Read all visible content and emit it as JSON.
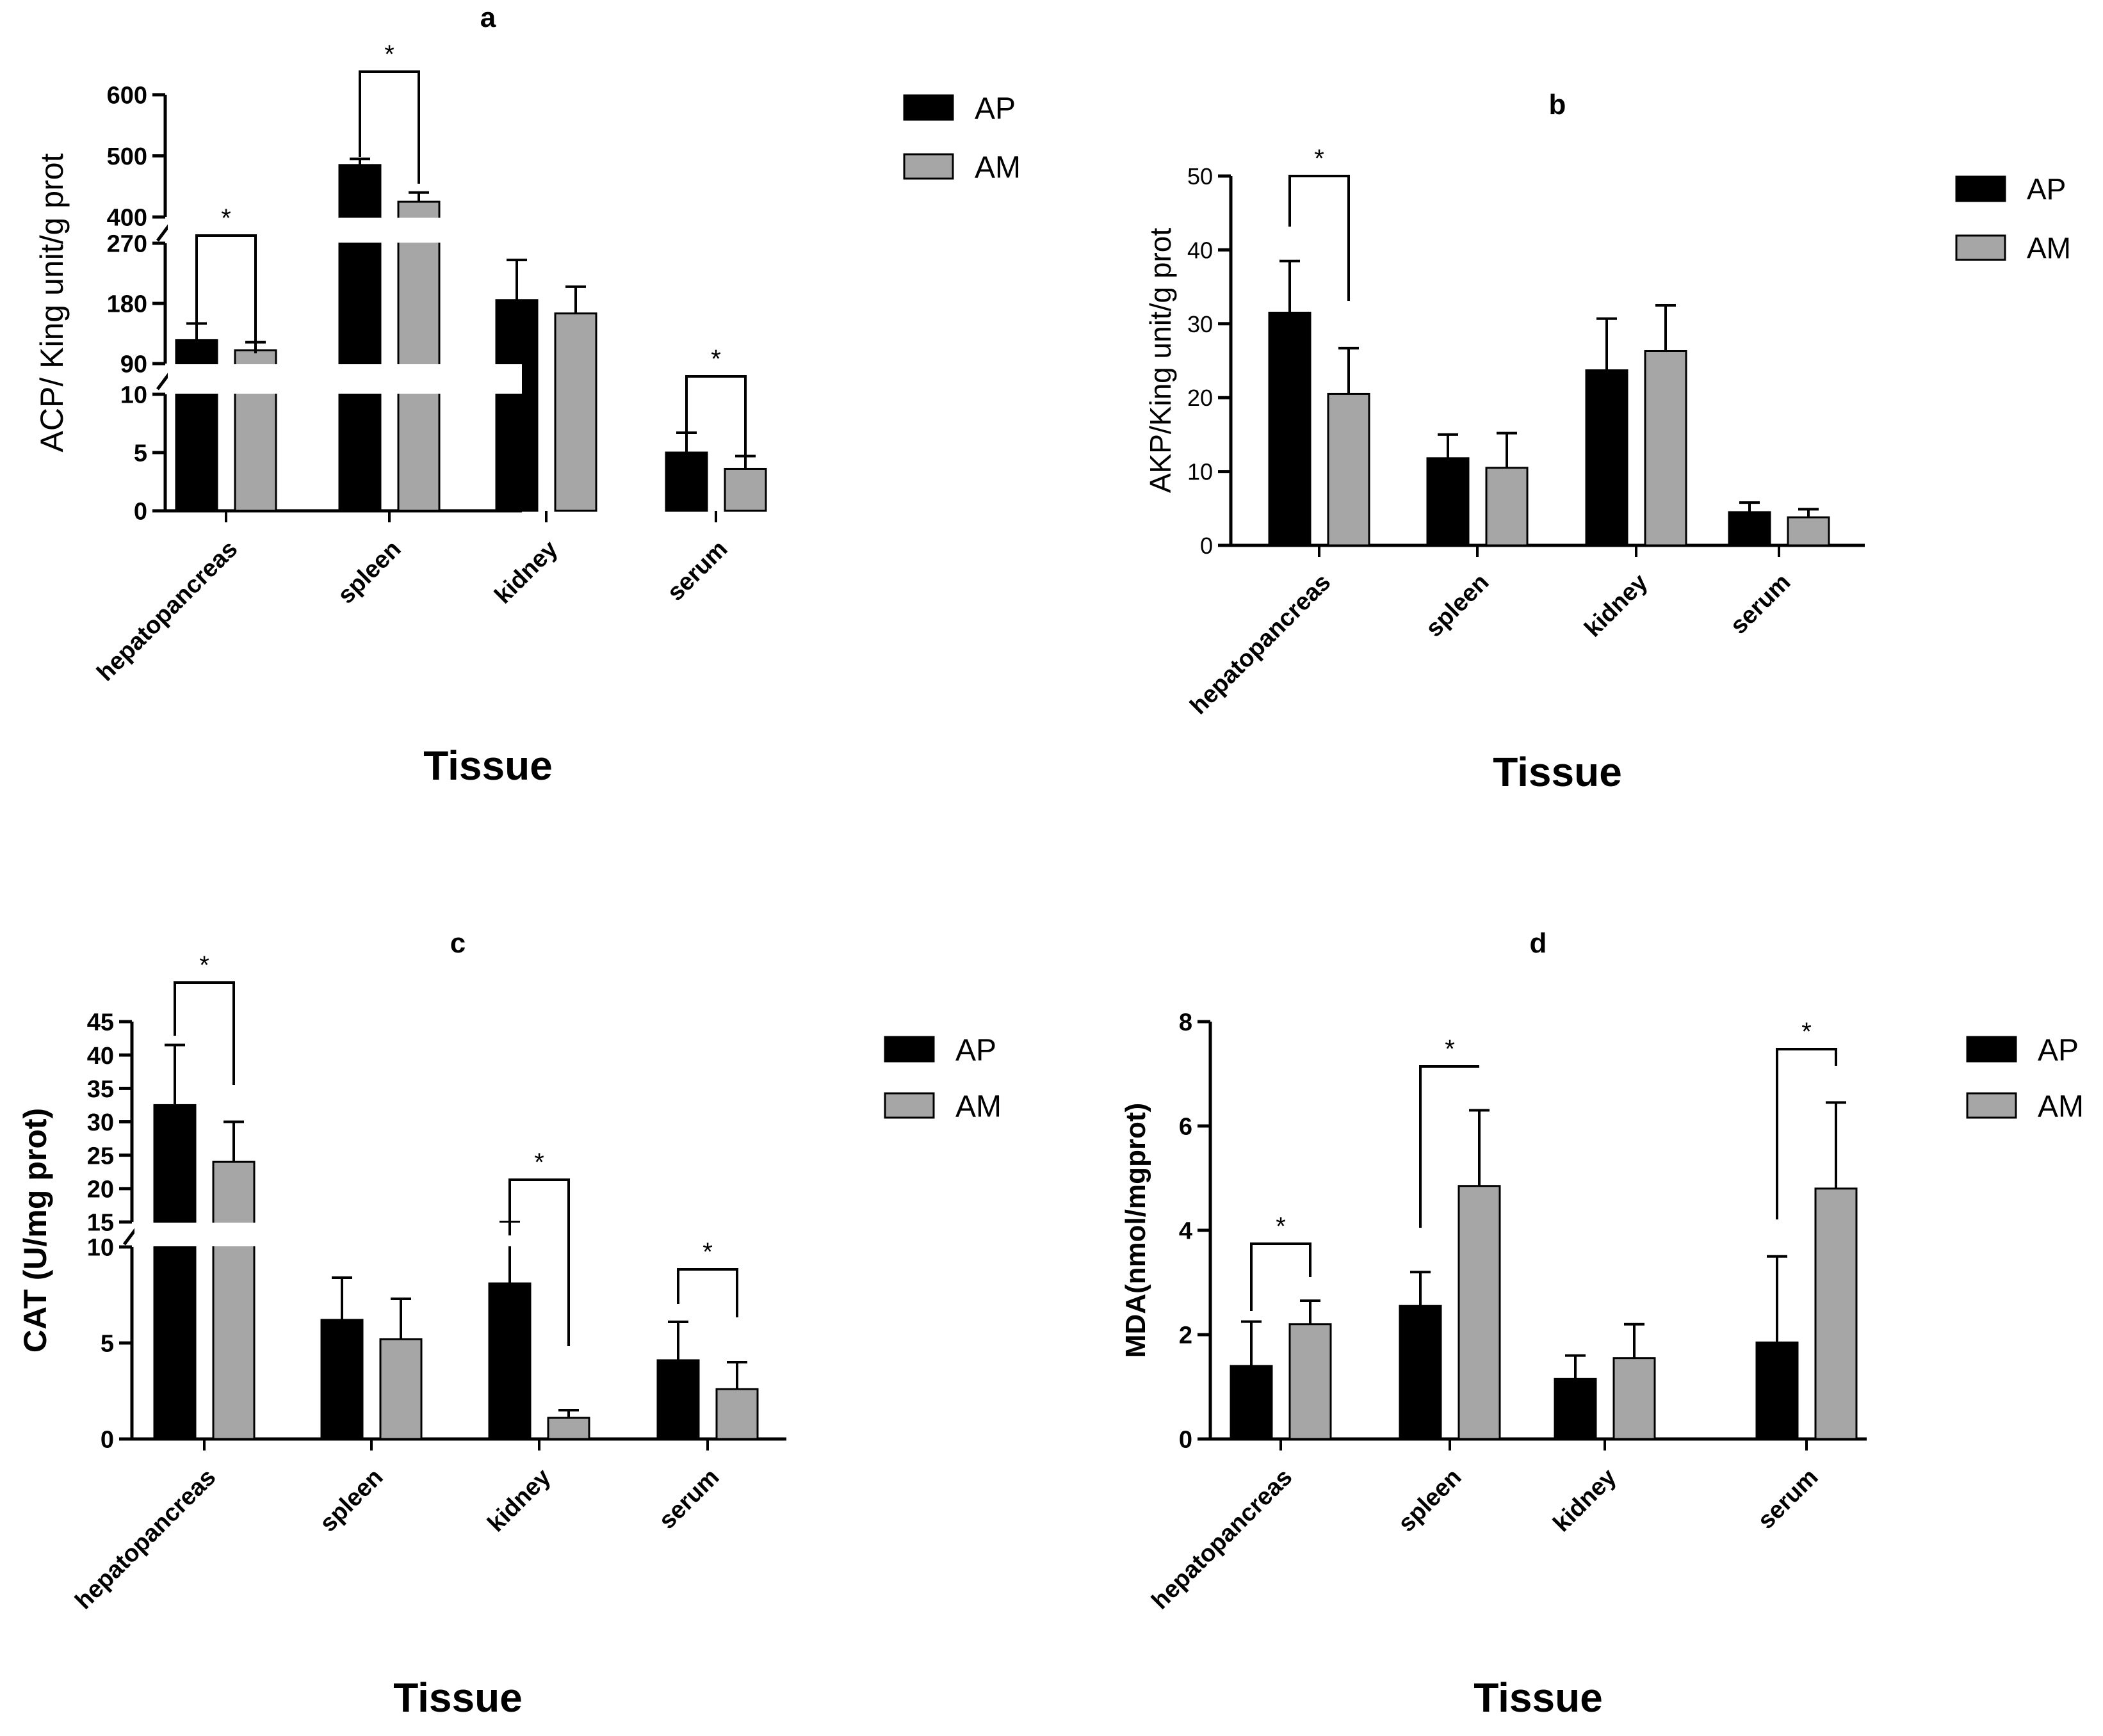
{
  "colors": {
    "AP": "#000000",
    "AM": "#a6a6a6",
    "axis": "#000000",
    "background": "#ffffff"
  },
  "chart_data": [
    {
      "id": "a",
      "panel_label": "a",
      "type": "bar",
      "categories": [
        "hepatopancreas",
        "spleen",
        "kidney",
        "serum"
      ],
      "series": [
        {
          "name": "AP",
          "values": [
            125,
            485,
            185,
            5.0
          ],
          "errors": [
            25,
            10,
            60,
            1.7
          ]
        },
        {
          "name": "AM",
          "values": [
            110,
            425,
            165,
            3.6
          ],
          "errors": [
            12,
            15,
            40,
            1.1
          ]
        }
      ],
      "xlabel": "Tissue",
      "ylabel": "ACP/ King unit/g prot",
      "axis_breaks": {
        "segments": [
          {
            "range": [
              0,
              10
            ],
            "ticks": [
              0,
              5,
              10
            ]
          },
          {
            "range": [
              90,
              270
            ],
            "ticks": [
              90,
              180,
              270
            ]
          },
          {
            "range": [
              400,
              600
            ],
            "ticks": [
              400,
              500,
              600
            ]
          }
        ]
      },
      "significance": [
        {
          "category": "hepatopancreas",
          "label": "*"
        },
        {
          "category": "spleen",
          "label": "*"
        },
        {
          "category": "serum",
          "label": "*"
        }
      ],
      "legend": [
        "AP",
        "AM"
      ]
    },
    {
      "id": "b",
      "panel_label": "b",
      "type": "bar",
      "categories": [
        "hepatopancreas",
        "spleen",
        "kidney",
        "serum"
      ],
      "series": [
        {
          "name": "AP",
          "values": [
            31.5,
            11.8,
            23.7,
            4.5
          ],
          "errors": [
            7,
            3.2,
            7,
            1.3
          ]
        },
        {
          "name": "AM",
          "values": [
            20.5,
            10.5,
            26.3,
            3.8
          ],
          "errors": [
            6.2,
            4.7,
            6.2,
            1.1
          ]
        }
      ],
      "xlabel": "Tissue",
      "ylabel": "AKP/King unit/g prot",
      "ylim": [
        0,
        50
      ],
      "yticks": [
        0,
        10,
        20,
        30,
        40,
        50
      ],
      "significance": [
        {
          "category": "hepatopancreas",
          "label": "*"
        }
      ],
      "legend": [
        "AP",
        "AM"
      ]
    },
    {
      "id": "c",
      "panel_label": "c",
      "type": "bar",
      "categories": [
        "hepatopancreas",
        "spleen",
        "kidney",
        "serum"
      ],
      "series": [
        {
          "name": "AP",
          "values": [
            32.5,
            6.2,
            8.1,
            4.1
          ],
          "errors": [
            9,
            2.2,
            2,
            2
          ]
        },
        {
          "name": "AM",
          "values": [
            24,
            5.2,
            1.1,
            2.6
          ],
          "errors": [
            6,
            2.1,
            0.4,
            1.4
          ]
        }
      ],
      "xlabel": "Tissue",
      "ylabel": "CAT  (U/mg prot)",
      "axis_breaks": {
        "segments": [
          {
            "range": [
              0,
              10
            ],
            "ticks": [
              0,
              5,
              10
            ]
          },
          {
            "range": [
              15,
              45
            ],
            "ticks": [
              15,
              20,
              25,
              30,
              35,
              40,
              45
            ]
          }
        ]
      },
      "significance": [
        {
          "category": "hepatopancreas",
          "label": "*"
        },
        {
          "category": "kidney",
          "label": "*"
        },
        {
          "category": "serum",
          "label": "*"
        }
      ],
      "legend": [
        "AP",
        "AM"
      ]
    },
    {
      "id": "d",
      "panel_label": "d",
      "type": "bar",
      "categories": [
        "hepatopancreas",
        "spleen",
        "kidney",
        "serum"
      ],
      "series": [
        {
          "name": "AP",
          "values": [
            1.4,
            2.55,
            1.15,
            1.85
          ],
          "errors": [
            0.85,
            0.65,
            0.45,
            1.65
          ]
        },
        {
          "name": "AM",
          "values": [
            2.2,
            4.85,
            1.55,
            4.8
          ],
          "errors": [
            0.45,
            1.45,
            0.65,
            1.65
          ]
        }
      ],
      "xlabel": "Tissue",
      "ylabel": "MDA(nmol/mgprot)",
      "ylim": [
        0,
        8
      ],
      "yticks": [
        0,
        2,
        4,
        6,
        8
      ],
      "significance": [
        {
          "category": "hepatopancreas",
          "label": "*"
        },
        {
          "category": "spleen",
          "label": "*"
        },
        {
          "category": "serum",
          "label": "*"
        }
      ],
      "legend": [
        "AP",
        "AM"
      ]
    }
  ]
}
